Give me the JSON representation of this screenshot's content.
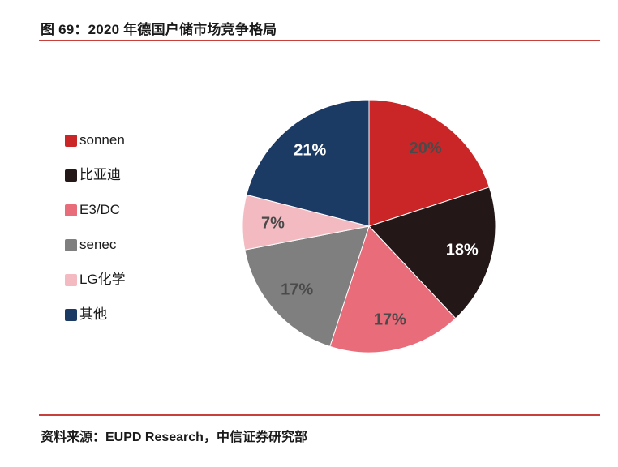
{
  "figure": {
    "title": "图 69：2020 年德国户储市场竞争格局",
    "source": "资料来源：EUPD Research，中信证券研究部"
  },
  "colors": {
    "rule_red": "#C8403C",
    "text_dark": "#1A1A1A",
    "slice_label_dark": "#4A4A4A",
    "slice_label_light": "#FFFFFF"
  },
  "chart_data": {
    "type": "pie",
    "title": "2020 年德国户储市场竞争格局",
    "legend_position": "left",
    "start_angle": "top",
    "direction": "clockwise",
    "categories": [
      "sonnen",
      "比亚迪",
      "E3/DC",
      "senec",
      "LG化学",
      "其他"
    ],
    "values": [
      20,
      18,
      17,
      17,
      7,
      21
    ],
    "slices": [
      {
        "label": "sonnen",
        "value_pct": 20,
        "display": "20%",
        "color": "#CB2627",
        "label_color": "#4A4A4A"
      },
      {
        "label": "比亚迪",
        "value_pct": 18,
        "display": "18%",
        "color": "#231717",
        "label_color": "#FFFFFF"
      },
      {
        "label": "E3/DC",
        "value_pct": 17,
        "display": "17%",
        "color": "#E96C7B",
        "label_color": "#4A4A4A"
      },
      {
        "label": "senec",
        "value_pct": 17,
        "display": "17%",
        "color": "#7F7F7F",
        "label_color": "#4A4A4A"
      },
      {
        "label": "LG化学",
        "value_pct": 7,
        "display": "7%",
        "color": "#F3BBC1",
        "label_color": "#4A4A4A"
      },
      {
        "label": "其他",
        "value_pct": 21,
        "display": "21%",
        "color": "#1B3A64",
        "label_color": "#FFFFFF"
      }
    ]
  }
}
